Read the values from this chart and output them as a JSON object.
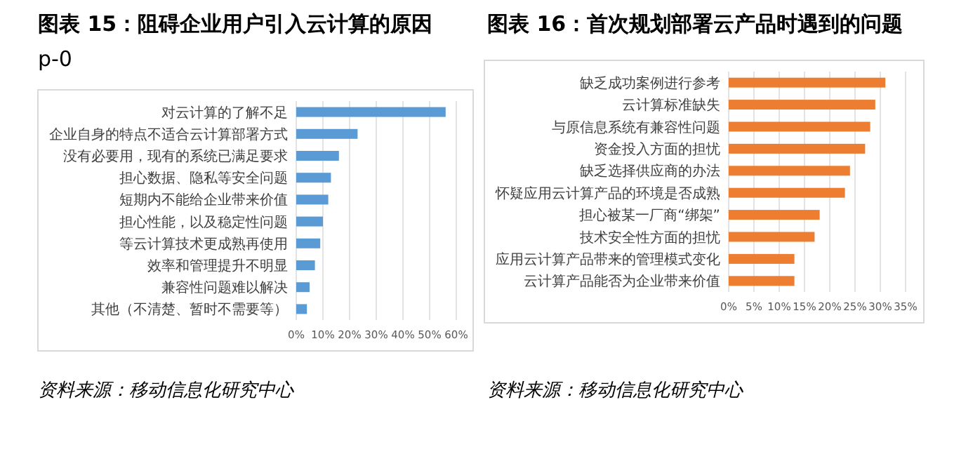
{
  "chart_data": [
    {
      "type": "bar",
      "orientation": "horizontal",
      "title": "图表 15：阻碍企业用户引入云计算的原因",
      "subtitle": "p-0",
      "categories": [
        "对云计算的了解不足",
        "企业自身的特点不适合云计算部署方式",
        "没有必要用，现有的系统已满足要求",
        "担心数据、隐私等安全问题",
        "短期内不能给企业带来价值",
        "担心性能，以及稳定性问题",
        "等云计算技术更成熟再使用",
        "效率和管理提升不明显",
        "兼容性问题难以解决",
        "其他（不清楚、暂时不需要等）"
      ],
      "values": [
        56,
        23,
        16,
        13,
        12,
        10,
        9,
        7,
        5,
        4
      ],
      "color": "#5b9bd5",
      "xlim": [
        0,
        60
      ],
      "xticks": [
        {
          "value": 0,
          "label": "0%"
        },
        {
          "value": 10,
          "label": "10%"
        },
        {
          "value": 20,
          "label": "20%"
        },
        {
          "value": 30,
          "label": "30%"
        },
        {
          "value": 40,
          "label": "40%"
        },
        {
          "value": 50,
          "label": "50%"
        },
        {
          "value": 60,
          "label": "60%"
        }
      ],
      "grid": "x",
      "annotations": [
        "资料来源：移动信息化研究中心"
      ]
    },
    {
      "type": "bar",
      "orientation": "horizontal",
      "title": "图表 16：首次规划部署云产品时遇到的问题",
      "categories": [
        "缺乏成功案例进行参考",
        "云计算标准缺失",
        "与原信息系统有兼容性问题",
        "资金投入方面的担忧",
        "缺乏选择供应商的办法",
        "怀疑应用云计算产品的环境是否成熟",
        "担心被某一厂商“绑架”",
        "技术安全性方面的担忧",
        "应用云计算产品带来的管理模式变化",
        "云计算产品能否为企业带来价值"
      ],
      "values": [
        31,
        29,
        28,
        27,
        24,
        23,
        18,
        17,
        13,
        13
      ],
      "color": "#ed7d31",
      "xlim": [
        0,
        35
      ],
      "xticks": [
        {
          "value": 0,
          "label": "0%"
        },
        {
          "value": 5,
          "label": "5%"
        },
        {
          "value": 10,
          "label": "10%"
        },
        {
          "value": 15,
          "label": "15%"
        },
        {
          "value": 20,
          "label": "20%"
        },
        {
          "value": 25,
          "label": "25%"
        },
        {
          "value": 30,
          "label": "30%"
        },
        {
          "value": 35,
          "label": "35%"
        }
      ],
      "grid": "x",
      "annotations": [
        "资料来源：移动信息化研究中心"
      ]
    }
  ]
}
